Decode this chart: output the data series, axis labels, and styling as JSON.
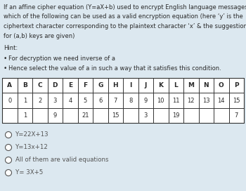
{
  "bg_color": "#dce8f0",
  "title_lines": [
    "If an affine cipher equation (Y=aX+b) used to encrypt English language messages,",
    "which of the following can be used as a valid encryption equation (here ‘y’ is the",
    "ciphertext character corresponding to the plaintext character ‘x’ & the suggestions",
    "for (a,b) keys are given)"
  ],
  "hint_label": "Hint:",
  "bullets": [
    "For decryption we need inverse of a",
    "Hence select the value of a in such a way that it satisfies this condition."
  ],
  "table_row1": [
    "A",
    "B",
    "C",
    "D",
    "E",
    "F",
    "G",
    "H",
    "I",
    "J",
    "K",
    "L",
    "M",
    "N",
    "O",
    "P"
  ],
  "table_row2": [
    "0",
    "1",
    "2",
    "3",
    "4",
    "5",
    "6",
    "7",
    "8",
    "9",
    "10",
    "11",
    "12",
    "13",
    "14",
    "15"
  ],
  "table_row3": [
    "",
    "1",
    "",
    "9",
    "",
    "21",
    "",
    "15",
    "",
    "3",
    "",
    "19",
    "",
    "",
    "",
    "7"
  ],
  "options": [
    "Y=22X+13",
    "Y=13x+12",
    "All of them are valid equations",
    "Y= 3X+5"
  ],
  "text_color": "#2a2a2a",
  "option_color": "#555555",
  "table_border_color": "#333333"
}
